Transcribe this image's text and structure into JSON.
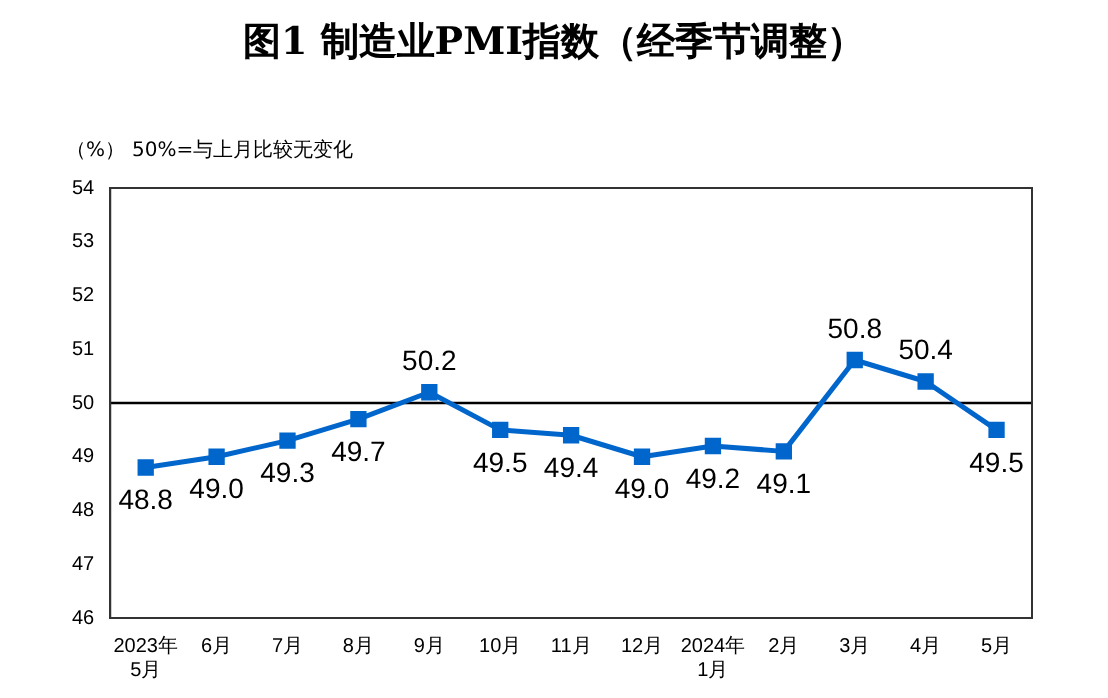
{
  "chart_data": {
    "type": "line",
    "title": "图1  制造业PMI指数（经季节调整）",
    "ylabel": "（%）",
    "categories": [
      "2023年\n5月",
      "6月",
      "7月",
      "8月",
      "9月",
      "10月",
      "11月",
      "12月",
      "2024年\n1月",
      "2月",
      "3月",
      "4月",
      "5月"
    ],
    "series": [
      {
        "color": "#0066cc",
        "values": [
          48.8,
          49.0,
          49.3,
          49.7,
          50.2,
          49.5,
          49.4,
          49.0,
          49.2,
          49.1,
          50.8,
          50.4,
          49.5
        ],
        "value_labels": [
          "48.8",
          "49.0",
          "49.3",
          "49.7",
          "50.2",
          "49.5",
          "49.4",
          "49.0",
          "49.2",
          "49.1",
          "50.8",
          "50.4",
          "49.5"
        ]
      }
    ],
    "ylim": [
      46,
      54
    ],
    "yticks": [
      46,
      47,
      48,
      49,
      50,
      51,
      52,
      53,
      54
    ],
    "ref_lines": [
      {
        "axis": "y",
        "value": 50,
        "label": "50%=与上月比较无变化",
        "color": "#000000"
      }
    ],
    "marker": "square",
    "grid": false,
    "legend": false
  }
}
